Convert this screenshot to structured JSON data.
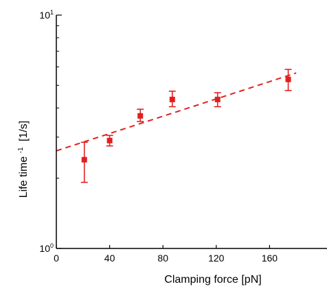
{
  "chart_data": {
    "type": "scatter",
    "xlabel": "Clamping force [pN]",
    "ylabel_main": "Life time",
    "ylabel_exp": "-1",
    "ylabel_unit": "[1/s]",
    "xlim": [
      0,
      180
    ],
    "ylim": [
      1,
      10
    ],
    "yscale": "log",
    "xticks": [
      0,
      40,
      80,
      120,
      160
    ],
    "yticks": [
      {
        "value": 1,
        "base": "10",
        "exp": "0"
      },
      {
        "value": 10,
        "base": "10",
        "exp": "1"
      }
    ],
    "grid": false,
    "legend": "none",
    "colors": {
      "data": "#e02020",
      "fit": "#e02020",
      "axis": "#000000"
    },
    "series": [
      {
        "points": [
          {
            "x": 21,
            "y": 2.4,
            "ylow": 1.92,
            "yhigh": 2.85
          },
          {
            "x": 40,
            "y": 2.9,
            "ylow": 2.75,
            "yhigh": 3.05
          },
          {
            "x": 63,
            "y": 3.7,
            "ylow": 3.5,
            "yhigh": 3.95
          },
          {
            "x": 87,
            "y": 4.35,
            "ylow": 4.05,
            "yhigh": 4.72
          },
          {
            "x": 121,
            "y": 4.35,
            "ylow": 4.05,
            "yhigh": 4.65
          },
          {
            "x": 174,
            "y": 5.3,
            "ylow": 4.75,
            "yhigh": 5.85
          }
        ]
      }
    ],
    "fit": {
      "type": "exponential",
      "x": [
        0,
        180
      ],
      "y": [
        2.62,
        5.65
      ]
    }
  }
}
